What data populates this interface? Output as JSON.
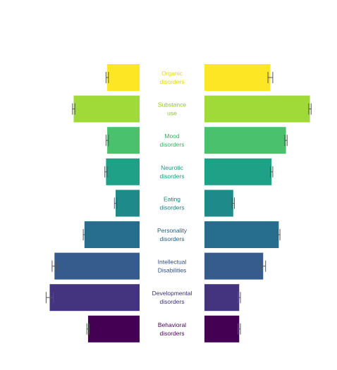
{
  "chart_data": {
    "type": "bar",
    "layout": "back-to-back horizontal bars",
    "categories": [
      [
        "Organic",
        "disorders"
      ],
      [
        "Substance",
        "use"
      ],
      [
        "Mood",
        "disorders"
      ],
      [
        "Neurotic",
        "disorders"
      ],
      [
        "Eating",
        "disorders"
      ],
      [
        "Personality",
        "disorders"
      ],
      [
        "Intellectual",
        "Disabilities"
      ],
      [
        "Developmental",
        "disorders"
      ],
      [
        "Behavioral",
        "disorders"
      ]
    ],
    "colors": [
      "#fde725",
      "#a0da39",
      "#4ac16d",
      "#1fa187",
      "#1f8a8a",
      "#276e8e",
      "#365c8d",
      "#44347f",
      "#440154"
    ],
    "series": [
      {
        "side": "left",
        "values": [
          0.27,
          0.55,
          0.27,
          0.28,
          0.2,
          0.46,
          0.71,
          0.75,
          0.43
        ],
        "error": [
          0.01,
          0.01,
          0.01,
          0.01,
          0.01,
          0.01,
          0.02,
          0.03,
          0.01
        ]
      },
      {
        "side": "right",
        "values": [
          0.55,
          0.88,
          0.68,
          0.56,
          0.24,
          0.62,
          0.49,
          0.29,
          0.29
        ],
        "error": [
          0.02,
          0.01,
          0.01,
          0.01,
          0.01,
          0.01,
          0.02,
          0.01,
          0.01
        ]
      }
    ],
    "xlim": [
      0,
      1
    ],
    "grid": false,
    "legend": "none",
    "title": "",
    "xlabel": "",
    "ylabel": ""
  }
}
